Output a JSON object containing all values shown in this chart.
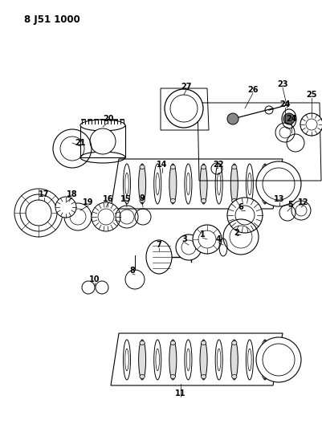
{
  "title": "8 J51 1000",
  "bg": "#ffffff",
  "lw": 0.8,
  "parts_labels": [
    [
      "20",
      135,
      148
    ],
    [
      "21",
      100,
      178
    ],
    [
      "27",
      232,
      108
    ],
    [
      "22",
      272,
      205
    ],
    [
      "26",
      315,
      112
    ],
    [
      "23",
      352,
      105
    ],
    [
      "24",
      355,
      130
    ],
    [
      "24",
      363,
      148
    ],
    [
      "25",
      388,
      118
    ],
    [
      "14",
      202,
      205
    ],
    [
      "18",
      90,
      242
    ],
    [
      "19",
      110,
      252
    ],
    [
      "17",
      55,
      242
    ],
    [
      "16",
      135,
      248
    ],
    [
      "15",
      157,
      248
    ],
    [
      "9",
      177,
      247
    ],
    [
      "6",
      300,
      258
    ],
    [
      "13",
      348,
      248
    ],
    [
      "5",
      362,
      255
    ],
    [
      "12",
      378,
      252
    ],
    [
      "7",
      198,
      305
    ],
    [
      "3",
      230,
      298
    ],
    [
      "1",
      252,
      292
    ],
    [
      "4",
      272,
      298
    ],
    [
      "2",
      295,
      290
    ],
    [
      "8",
      165,
      337
    ],
    [
      "10",
      118,
      348
    ],
    [
      "11",
      225,
      490
    ]
  ]
}
